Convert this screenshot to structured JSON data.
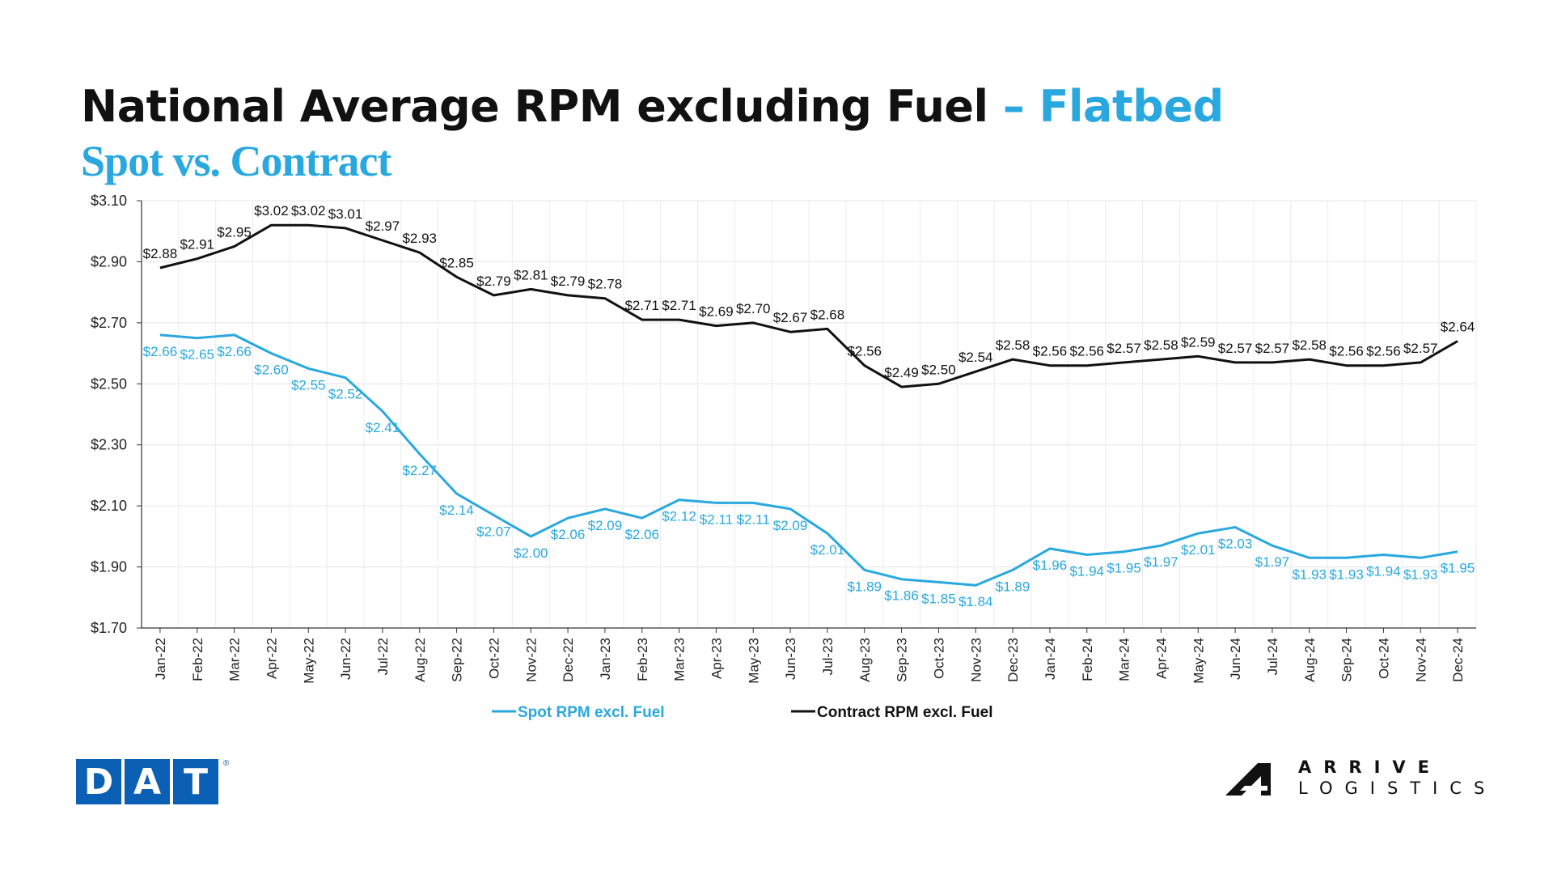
{
  "header": {
    "title_main": "National Average RPM excluding Fuel",
    "title_accent": "– Flatbed",
    "subtitle": "Spot vs. Contract"
  },
  "logos": {
    "dat": [
      "D",
      "A",
      "T"
    ],
    "dat_mark": "®",
    "arrive_line1": "ARRIVE",
    "arrive_line2": "LOGISTICS"
  },
  "colors": {
    "spot": "#29a8df",
    "contract": "#111111",
    "dat_blue": "#0b5fb4"
  },
  "chart_data": {
    "type": "line",
    "ylim": [
      1.7,
      3.1
    ],
    "yticks": [
      1.7,
      1.9,
      2.1,
      2.3,
      2.5,
      2.7,
      2.9,
      3.1
    ],
    "ytick_labels": [
      "$1.70",
      "$1.90",
      "$2.10",
      "$2.30",
      "$2.50",
      "$2.70",
      "$2.90",
      "$3.10"
    ],
    "grid": true,
    "legend_position": "bottom",
    "categories": [
      "Jan-22",
      "Feb-22",
      "Mar-22",
      "Apr-22",
      "May-22",
      "Jun-22",
      "Jul-22",
      "Aug-22",
      "Sep-22",
      "Oct-22",
      "Nov-22",
      "Dec-22",
      "Jan-23",
      "Feb-23",
      "Mar-23",
      "Apr-23",
      "May-23",
      "Jun-23",
      "Jul-23",
      "Aug-23",
      "Sep-23",
      "Oct-23",
      "Nov-23",
      "Dec-23",
      "Jan-24",
      "Feb-24",
      "Mar-24",
      "Apr-24",
      "May-24",
      "Jun-24",
      "Jul-24",
      "Aug-24",
      "Sep-24",
      "Oct-24",
      "Nov-24",
      "Dec-24"
    ],
    "series": [
      {
        "name": "Spot RPM excl. Fuel",
        "color": "#29a8df",
        "values": [
          2.66,
          2.65,
          2.66,
          2.6,
          2.55,
          2.52,
          2.41,
          2.27,
          2.14,
          2.07,
          2.0,
          2.06,
          2.09,
          2.06,
          2.12,
          2.11,
          2.11,
          2.09,
          2.01,
          1.89,
          1.86,
          1.85,
          1.84,
          1.89,
          1.96,
          1.94,
          1.95,
          1.97,
          2.01,
          2.03,
          1.97,
          1.93,
          1.93,
          1.94,
          1.93,
          1.95
        ],
        "labels": [
          "$2.66",
          "$2.65",
          "$2.66",
          "$2.60",
          "$2.55",
          "$2.52",
          "$2.41",
          "$2.27",
          "$2.14",
          "$2.07",
          "$2.00",
          "$2.06",
          "$2.09",
          "$2.06",
          "$2.12",
          "$2.11",
          "$2.11",
          "$2.09",
          "$2.01",
          "$1.89",
          "$1.86",
          "$1.85",
          "$1.84",
          "$1.89",
          "$1.96",
          "$1.94",
          "$1.95",
          "$1.97",
          "$2.01",
          "$2.03",
          "$1.97",
          "$1.93",
          "$1.93",
          "$1.94",
          "$1.93",
          "$1.95"
        ]
      },
      {
        "name": "Contract RPM excl. Fuel",
        "color": "#111111",
        "values": [
          2.88,
          2.91,
          2.95,
          3.02,
          3.02,
          3.01,
          2.97,
          2.93,
          2.85,
          2.79,
          2.81,
          2.79,
          2.78,
          2.71,
          2.71,
          2.69,
          2.7,
          2.67,
          2.68,
          2.56,
          2.49,
          2.5,
          2.54,
          2.58,
          2.56,
          2.56,
          2.57,
          2.58,
          2.59,
          2.57,
          2.57,
          2.58,
          2.56,
          2.56,
          2.57,
          2.64
        ],
        "labels": [
          "$2.88",
          "$2.91",
          "$2.95",
          "$3.02",
          "$3.02",
          "$3.01",
          "$2.97",
          "$2.93",
          "$2.85",
          "$2.79",
          "$2.81",
          "$2.79",
          "$2.78",
          "$2.71",
          "$2.71",
          "$2.69",
          "$2.70",
          "$2.67",
          "$2.68",
          "$2.56",
          "$2.49",
          "$2.50",
          "$2.54",
          "$2.58",
          "$2.56",
          "$2.56",
          "$2.57",
          "$2.58",
          "$2.59",
          "$2.57",
          "$2.57",
          "$2.58",
          "$2.56",
          "$2.56",
          "$2.57",
          "$2.64"
        ]
      }
    ]
  }
}
